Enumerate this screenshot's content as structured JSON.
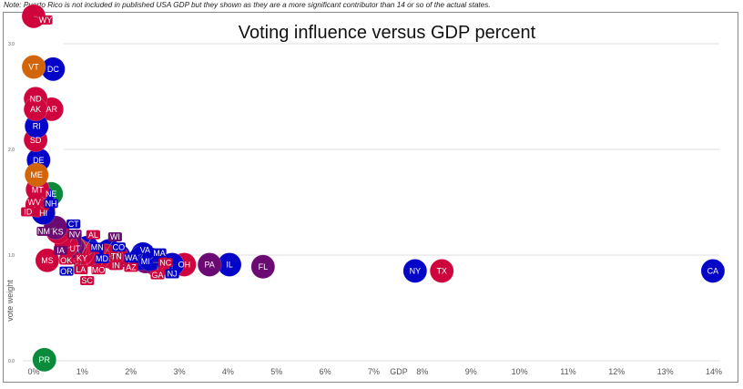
{
  "note": "Note: Puerto Rico is not included in published USA GDP but they shown as they are a more significant contributor than 14 or so of the actual states.",
  "chart_data": {
    "type": "scatter",
    "title": "Voting influence versus GDP percent",
    "xlabel": "GDP",
    "ylabel": "vote weight",
    "xlim": [
      0,
      14
    ],
    "ylim": [
      0,
      3
    ],
    "x_ticks": [
      "0%",
      "1%",
      "2%",
      "3%",
      "4%",
      "5%",
      "6%",
      "7%",
      "8%",
      "9%",
      "10%",
      "11%",
      "12%",
      "13%",
      "14%"
    ],
    "y_ticks": [
      "0.0",
      "1.0",
      "2.0",
      "3.0"
    ],
    "grid": true,
    "colors": {
      "R": "#d0043c",
      "D": "#0505c8",
      "S": "#6b0a72",
      "I": "#d2650a",
      "T": "#0a8a3a"
    },
    "points": [
      {
        "label": "PR",
        "gdp": 0.22,
        "vote_weight": 0.01,
        "group": "T"
      },
      {
        "label": "CA",
        "gdp": 13.98,
        "vote_weight": 0.85,
        "group": "D"
      },
      {
        "label": "TX",
        "gdp": 8.4,
        "vote_weight": 0.85,
        "group": "R"
      },
      {
        "label": "NY",
        "gdp": 7.85,
        "vote_weight": 0.85,
        "group": "D"
      },
      {
        "label": "FL",
        "gdp": 4.72,
        "vote_weight": 0.89,
        "group": "S"
      },
      {
        "label": "IL",
        "gdp": 4.03,
        "vote_weight": 0.91,
        "group": "D"
      },
      {
        "label": "PA",
        "gdp": 3.62,
        "vote_weight": 0.91,
        "group": "S"
      },
      {
        "label": "OH",
        "gdp": 3.1,
        "vote_weight": 0.91,
        "group": "R"
      },
      {
        "label": "NJ",
        "gdp": 2.85,
        "vote_weight": 0.91,
        "group": "D"
      },
      {
        "label": "GA",
        "gdp": 2.55,
        "vote_weight": 0.9,
        "group": "R"
      },
      {
        "label": "NC",
        "gdp": 2.45,
        "vote_weight": 0.93,
        "group": "R"
      },
      {
        "label": "MI",
        "gdp": 2.3,
        "vote_weight": 0.94,
        "group": "S"
      },
      {
        "label": "WA",
        "gdp": 2.25,
        "vote_weight": 1.01,
        "group": "D"
      },
      {
        "label": "VA",
        "gdp": 2.2,
        "vote_weight": 0.97,
        "group": "D"
      },
      {
        "label": "MA",
        "gdp": 2.4,
        "vote_weight": 0.96,
        "group": "D"
      },
      {
        "label": "CO",
        "gdp": 1.75,
        "vote_weight": 0.99,
        "group": "D"
      },
      {
        "label": "MD",
        "gdp": 1.65,
        "vote_weight": 1.0,
        "group": "D"
      },
      {
        "label": "MN",
        "gdp": 1.55,
        "vote_weight": 1.04,
        "group": "D"
      },
      {
        "label": "TN",
        "gdp": 1.7,
        "vote_weight": 0.99,
        "group": "R"
      },
      {
        "label": "IN",
        "gdp": 1.6,
        "vote_weight": 0.98,
        "group": "R"
      },
      {
        "label": "WI",
        "gdp": 1.45,
        "vote_weight": 1.0,
        "group": "S"
      },
      {
        "label": "MO",
        "gdp": 1.5,
        "vote_weight": 0.99,
        "group": "R"
      },
      {
        "label": "AZ",
        "gdp": 1.33,
        "vote_weight": 0.98,
        "group": "R"
      },
      {
        "label": "CT",
        "gdp": 1.1,
        "vote_weight": 1.07,
        "group": "D"
      },
      {
        "label": "OR",
        "gdp": 1.2,
        "vote_weight": 1.02,
        "group": "D"
      },
      {
        "label": "SC",
        "gdp": 1.1,
        "vote_weight": 1.0,
        "group": "R"
      },
      {
        "label": "LA",
        "gdp": 0.97,
        "vote_weight": 1.0,
        "group": "R"
      },
      {
        "label": "AL",
        "gdp": 1.0,
        "vote_weight": 1.02,
        "group": "R"
      },
      {
        "label": "KY",
        "gdp": 0.9,
        "vote_weight": 1.05,
        "group": "R"
      },
      {
        "label": "UT",
        "gdp": 0.85,
        "vote_weight": 1.06,
        "group": "R"
      },
      {
        "label": "IA",
        "gdp": 0.8,
        "vote_weight": 1.08,
        "group": "S"
      },
      {
        "label": "NV",
        "gdp": 0.75,
        "vote_weight": 1.12,
        "group": "S"
      },
      {
        "label": "OK",
        "gdp": 0.67,
        "vote_weight": 1.09,
        "group": "R"
      },
      {
        "label": "KS",
        "gdp": 0.5,
        "vote_weight": 1.22,
        "group": "R"
      },
      {
        "label": "AR",
        "gdp": 0.37,
        "vote_weight": 2.38,
        "group": "R"
      },
      {
        "label": "MS",
        "gdp": 0.28,
        "vote_weight": 0.95,
        "group": "R"
      },
      {
        "label": "NM",
        "gdp": 0.45,
        "vote_weight": 1.26,
        "group": "S"
      },
      {
        "label": "NE",
        "gdp": 0.36,
        "vote_weight": 1.58,
        "group": "T"
      },
      {
        "label": "WV",
        "gdp": 0.2,
        "vote_weight": 1.44,
        "group": "R"
      },
      {
        "label": "HI",
        "gdp": 0.2,
        "vote_weight": 1.4,
        "group": "D"
      },
      {
        "label": "NH",
        "gdp": 0.17,
        "vote_weight": 1.55,
        "group": "D"
      },
      {
        "label": "ID",
        "gdp": 0.07,
        "vote_weight": 1.47,
        "group": "R"
      },
      {
        "label": "MT",
        "gdp": 0.08,
        "vote_weight": 1.62,
        "group": "R"
      },
      {
        "label": "DE",
        "gdp": 0.1,
        "vote_weight": 1.9,
        "group": "D"
      },
      {
        "label": "ME",
        "gdp": 0.06,
        "vote_weight": 1.76,
        "group": "I"
      },
      {
        "label": "SD",
        "gdp": 0.04,
        "vote_weight": 2.09,
        "group": "R"
      },
      {
        "label": "RI",
        "gdp": 0.06,
        "vote_weight": 2.22,
        "group": "D"
      },
      {
        "label": "ND",
        "gdp": 0.04,
        "vote_weight": 2.48,
        "group": "R"
      },
      {
        "label": "AK",
        "gdp": 0.04,
        "vote_weight": 2.38,
        "group": "R"
      },
      {
        "label": "DC",
        "gdp": 0.4,
        "vote_weight": 2.76,
        "group": "D"
      },
      {
        "label": "VT",
        "gdp": 0.0,
        "vote_weight": 2.78,
        "group": "I"
      },
      {
        "label": "WY",
        "gdp": 0.0,
        "vote_weight": 3.26,
        "group": "R"
      }
    ]
  }
}
